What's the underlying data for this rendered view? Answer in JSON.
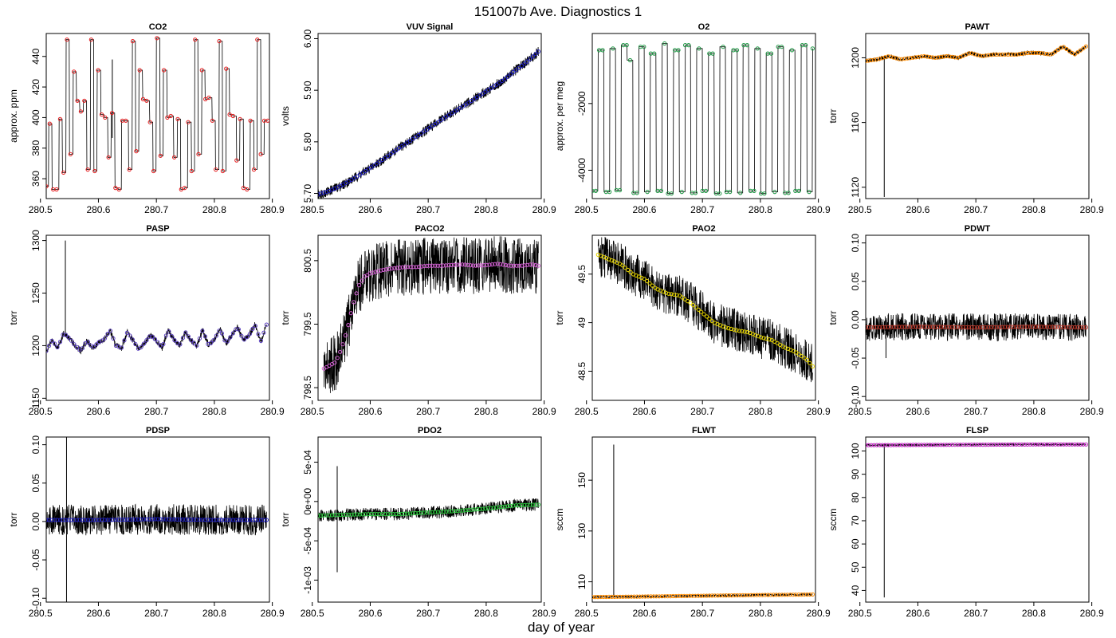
{
  "figure": {
    "title": "151007b   Ave. Diagnostics 1",
    "xlabel": "day of year"
  },
  "chart_data": [
    {
      "name": "CO2",
      "type": "line",
      "title": "CO2",
      "ylabel": "approx. ppm",
      "xlim": [
        280.51,
        280.895
      ],
      "ylim": [
        347,
        455
      ],
      "xticks": [
        280.5,
        280.6,
        280.7,
        280.8,
        280.9
      ],
      "yticks": [
        360,
        380,
        400,
        420,
        440
      ],
      "raw_color": "#000000",
      "avg_color": "#e41a1c",
      "series": [
        {
          "x": [
            280.51,
            280.514,
            280.52,
            280.526,
            280.532,
            280.538,
            280.544,
            280.55,
            280.556,
            280.562,
            280.568,
            280.574,
            280.58,
            280.586,
            280.592,
            280.598,
            280.604,
            280.61,
            280.616,
            280.622,
            280.628,
            280.634,
            280.64,
            280.646,
            280.652,
            280.658,
            280.664,
            280.67,
            280.676,
            280.682,
            280.688,
            280.694,
            280.7,
            280.706,
            280.712,
            280.718,
            280.724,
            280.73,
            280.736,
            280.742,
            280.748,
            280.754,
            280.76,
            280.766,
            280.772,
            280.778,
            280.784,
            280.79,
            280.796,
            280.802,
            280.808,
            280.814,
            280.82,
            280.826,
            280.832,
            280.838,
            280.844,
            280.85,
            280.856,
            280.862,
            280.868,
            280.874,
            280.88,
            280.886,
            280.892
          ],
          "y": [
            355,
            396,
            353,
            353,
            399,
            364,
            451,
            376,
            430,
            411,
            404,
            411,
            366,
            451,
            365,
            431,
            402,
            400,
            374,
            403,
            354,
            353,
            398,
            398,
            366,
            450,
            378,
            431,
            412,
            411,
            397,
            365,
            452,
            375,
            431,
            400,
            401,
            374,
            399,
            353,
            354,
            397,
            365,
            451,
            376,
            431,
            412,
            413,
            398,
            366,
            450,
            365,
            432,
            402,
            401,
            372,
            399,
            354,
            353,
            398,
            366,
            451,
            376,
            398,
            398
          ]
        }
      ]
    },
    {
      "name": "VUV Signal",
      "type": "line",
      "title": "VUV Signal",
      "ylabel": "volts",
      "xlim": [
        280.51,
        280.895
      ],
      "ylim": [
        5.69,
        6.01
      ],
      "xticks": [
        280.5,
        280.6,
        280.7,
        280.8,
        280.9
      ],
      "yticks": [
        5.7,
        5.8,
        5.9,
        6.0
      ],
      "yticklabels": [
        "5.70",
        "5.80",
        "5.90",
        "6.00"
      ],
      "raw_color": "#000000",
      "avg_color": "#1f1fbf",
      "series": [
        {
          "x": [
            280.51,
            280.53,
            280.55,
            280.57,
            280.59,
            280.61,
            280.63,
            280.65,
            280.67,
            280.69,
            280.71,
            280.73,
            280.75,
            280.77,
            280.79,
            280.81,
            280.83,
            280.85,
            280.87,
            280.89
          ],
          "y": [
            5.698,
            5.705,
            5.715,
            5.728,
            5.742,
            5.757,
            5.772,
            5.788,
            5.803,
            5.818,
            5.833,
            5.848,
            5.862,
            5.876,
            5.891,
            5.905,
            5.92,
            5.938,
            5.955,
            5.975
          ]
        }
      ]
    },
    {
      "name": "O2",
      "type": "line",
      "title": "O2",
      "ylabel": "approx. per meg",
      "xlim": [
        280.51,
        280.895
      ],
      "ylim": [
        -4850,
        100
      ],
      "xticks": [
        280.5,
        280.6,
        280.7,
        280.8,
        280.9
      ],
      "yticks": [
        -4000,
        -2000
      ],
      "raw_color": "#000000",
      "avg_color": "#1a9641",
      "series": [
        {
          "x": [
            280.51,
            280.52,
            280.53,
            280.54,
            280.55,
            280.56,
            280.57,
            280.58,
            280.59,
            280.6,
            280.61,
            280.62,
            280.63,
            280.64,
            280.65,
            280.66,
            280.67,
            280.68,
            280.69,
            280.7,
            280.71,
            280.72,
            280.73,
            280.74,
            280.75,
            280.76,
            280.77,
            280.78,
            280.79,
            280.8,
            280.81,
            280.82,
            280.83,
            280.84,
            280.85,
            280.86,
            280.87,
            280.88,
            280.89
          ],
          "y": [
            -4620,
            -400,
            -4650,
            -350,
            -4600,
            -250,
            -700,
            -4680,
            -300,
            -4650,
            -500,
            -4620,
            -200,
            -4700,
            -400,
            -4650,
            -250,
            -4680,
            -350,
            -4620,
            -500,
            -4700,
            -300,
            -4650,
            -400,
            -4680,
            -250,
            -4620,
            -350,
            -4700,
            -500,
            -4650,
            -300,
            -4680,
            -400,
            -4620,
            -250,
            -4650,
            -350
          ]
        }
      ]
    },
    {
      "name": "PAWT",
      "type": "line",
      "title": "PAWT",
      "ylabel": "torr",
      "xlim": [
        280.51,
        280.895
      ],
      "ylim": [
        1113,
        1215
      ],
      "xticks": [
        280.5,
        280.6,
        280.7,
        280.8,
        280.9
      ],
      "yticks": [
        1120,
        1160,
        1200
      ],
      "raw_color": "#000000",
      "avg_color": "#ff8c00",
      "series": [
        {
          "x": [
            280.51,
            280.53,
            280.55,
            280.57,
            280.59,
            280.61,
            280.63,
            280.65,
            280.67,
            280.69,
            280.71,
            280.73,
            280.75,
            280.77,
            280.79,
            280.81,
            280.83,
            280.85,
            280.87,
            280.89
          ],
          "y": [
            1198,
            1199,
            1201,
            1199,
            1200,
            1201,
            1200,
            1201,
            1200,
            1203,
            1201,
            1202,
            1202,
            1202,
            1203,
            1203,
            1202,
            1207,
            1202,
            1207
          ]
        }
      ]
    },
    {
      "name": "PASP",
      "type": "line",
      "title": "PASP",
      "ylabel": "torr",
      "xlim": [
        280.51,
        280.895
      ],
      "ylim": [
        1148,
        1305
      ],
      "xticks": [
        280.5,
        280.6,
        280.7,
        280.8,
        280.9
      ],
      "yticks": [
        1150,
        1200,
        1250,
        1300
      ],
      "raw_color": "#000000",
      "avg_color": "#5a3fbf",
      "series": [
        {
          "x": [
            280.51,
            280.52,
            280.53,
            280.54,
            280.55,
            280.56,
            280.57,
            280.58,
            280.59,
            280.6,
            280.61,
            280.62,
            280.63,
            280.64,
            280.65,
            280.66,
            280.67,
            280.68,
            280.69,
            280.7,
            280.71,
            280.72,
            280.73,
            280.74,
            280.75,
            280.76,
            280.77,
            280.78,
            280.79,
            280.8,
            280.81,
            280.82,
            280.83,
            280.84,
            280.85,
            280.86,
            280.87,
            280.88,
            280.89
          ],
          "y": [
            1195,
            1205,
            1198,
            1212,
            1207,
            1200,
            1195,
            1205,
            1198,
            1203,
            1206,
            1215,
            1200,
            1198,
            1213,
            1205,
            1196,
            1203,
            1210,
            1205,
            1198,
            1215,
            1206,
            1200,
            1213,
            1205,
            1200,
            1215,
            1200,
            1206,
            1216,
            1202,
            1210,
            1218,
            1205,
            1210,
            1220,
            1204,
            1220
          ]
        }
      ]
    },
    {
      "name": "PACO2",
      "type": "line",
      "title": "PACO2",
      "ylabel": "torr",
      "xlim": [
        280.51,
        280.895
      ],
      "ylim": [
        798.3,
        800.9
      ],
      "xticks": [
        280.5,
        280.6,
        280.7,
        280.8,
        280.9
      ],
      "yticks": [
        798.5,
        799.5,
        800.5
      ],
      "raw_color": "#000000",
      "avg_color": "#d35fd3",
      "series": [
        {
          "x": [
            280.52,
            280.53,
            280.54,
            280.55,
            280.56,
            280.57,
            280.58,
            280.59,
            280.6,
            280.62,
            280.64,
            280.66,
            280.68,
            280.7,
            280.72,
            280.74,
            280.76,
            280.78,
            280.8,
            280.82,
            280.84,
            280.86,
            280.88,
            280.89
          ],
          "y": [
            798.8,
            798.85,
            798.9,
            799.1,
            799.4,
            799.8,
            800.1,
            800.25,
            800.3,
            800.35,
            800.38,
            800.4,
            800.4,
            800.42,
            800.42,
            800.43,
            800.44,
            800.42,
            800.43,
            800.45,
            800.42,
            800.42,
            800.44,
            800.42
          ]
        }
      ]
    },
    {
      "name": "PAO2",
      "type": "line",
      "title": "PAO2",
      "ylabel": "torr",
      "xlim": [
        280.51,
        280.895
      ],
      "ylim": [
        48.2,
        49.9
      ],
      "xticks": [
        280.5,
        280.6,
        280.7,
        280.8,
        280.9
      ],
      "yticks": [
        48.5,
        49.0,
        49.5
      ],
      "raw_color": "#000000",
      "avg_color": "#e6d400",
      "series": [
        {
          "x": [
            280.52,
            280.54,
            280.56,
            280.58,
            280.6,
            280.62,
            280.64,
            280.66,
            280.68,
            280.7,
            280.72,
            280.74,
            280.76,
            280.78,
            280.8,
            280.82,
            280.84,
            280.86,
            280.88,
            280.89
          ],
          "y": [
            49.7,
            49.65,
            49.6,
            49.5,
            49.45,
            49.35,
            49.3,
            49.28,
            49.2,
            49.1,
            49.0,
            48.95,
            48.92,
            48.9,
            48.85,
            48.82,
            48.75,
            48.7,
            48.62,
            48.55
          ]
        }
      ]
    },
    {
      "name": "PDWT",
      "type": "line",
      "title": "PDWT",
      "ylabel": "torr",
      "xlim": [
        280.51,
        280.895
      ],
      "ylim": [
        -0.105,
        0.11
      ],
      "xticks": [
        280.5,
        280.6,
        280.7,
        280.8,
        280.9
      ],
      "yticks": [
        -0.1,
        -0.05,
        0.0,
        0.05,
        0.1
      ],
      "yticklabels": [
        "-0.10",
        "-0.05",
        "0.00",
        "0.05",
        "0.10"
      ],
      "raw_color": "#000000",
      "avg_color": "#c0392b",
      "series": [
        {
          "x": [
            280.51,
            280.6,
            280.7,
            280.8,
            280.89
          ],
          "y": [
            -0.01,
            -0.009,
            -0.01,
            -0.009,
            -0.01
          ]
        }
      ]
    },
    {
      "name": "PDSP",
      "type": "line",
      "title": "PDSP",
      "ylabel": "torr",
      "xlim": [
        280.51,
        280.895
      ],
      "ylim": [
        -0.105,
        0.11
      ],
      "xticks": [
        280.5,
        280.6,
        280.7,
        280.8,
        280.9
      ],
      "yticks": [
        -0.1,
        -0.05,
        0.0,
        0.05,
        0.1
      ],
      "yticklabels": [
        "-0.10",
        "-0.05",
        "0.00",
        "0.05",
        "0.10"
      ],
      "raw_color": "#000000",
      "avg_color": "#1f1fbf",
      "series": [
        {
          "x": [
            280.51,
            280.6,
            280.7,
            280.8,
            280.89
          ],
          "y": [
            0.002,
            0.002,
            0.003,
            0.002,
            0.002
          ]
        }
      ]
    },
    {
      "name": "PDO2",
      "type": "line",
      "title": "PDO2",
      "ylabel": "torr",
      "xlim": [
        280.51,
        280.895
      ],
      "ylim": [
        -0.00128,
        0.00082
      ],
      "xticks": [
        280.5,
        280.6,
        280.7,
        280.8,
        280.9
      ],
      "yticks": [
        -0.001,
        -0.0005,
        0.0,
        0.0005
      ],
      "yticklabels": [
        "-1e-03",
        "-5e-04",
        "0e+00",
        "5e-04"
      ],
      "raw_color": "#000000",
      "avg_color": "#2ecc40",
      "series": [
        {
          "x": [
            280.51,
            280.55,
            280.6,
            280.65,
            280.7,
            280.75,
            280.8,
            280.85,
            280.89
          ],
          "y": [
            -0.00018,
            -0.00017,
            -0.00016,
            -0.00016,
            -0.00014,
            -0.00012,
            -9e-05,
            -5e-05,
            -4e-05
          ]
        }
      ]
    },
    {
      "name": "FLWT",
      "type": "line",
      "title": "FLWT",
      "ylabel": "sccm",
      "xlim": [
        280.51,
        280.895
      ],
      "ylim": [
        102,
        167
      ],
      "xticks": [
        280.5,
        280.6,
        280.7,
        280.8,
        280.9
      ],
      "yticks": [
        110,
        130,
        150
      ],
      "raw_color": "#000000",
      "avg_color": "#ff8c00",
      "series": [
        {
          "x": [
            280.51,
            280.6,
            280.7,
            280.8,
            280.89
          ],
          "y": [
            104,
            104.2,
            104.5,
            104.8,
            105
          ]
        }
      ]
    },
    {
      "name": "FLSP",
      "type": "line",
      "title": "FLSP",
      "ylabel": "sccm",
      "xlim": [
        280.51,
        280.895
      ],
      "ylim": [
        35,
        106
      ],
      "xticks": [
        280.5,
        280.6,
        280.7,
        280.8,
        280.9
      ],
      "yticks": [
        40,
        50,
        60,
        70,
        80,
        90,
        100
      ],
      "raw_color": "#000000",
      "avg_color": "#c020c0",
      "series": [
        {
          "x": [
            280.51,
            280.6,
            280.7,
            280.8,
            280.89
          ],
          "y": [
            102.5,
            102.6,
            102.7,
            102.8,
            102.8
          ]
        }
      ]
    }
  ]
}
